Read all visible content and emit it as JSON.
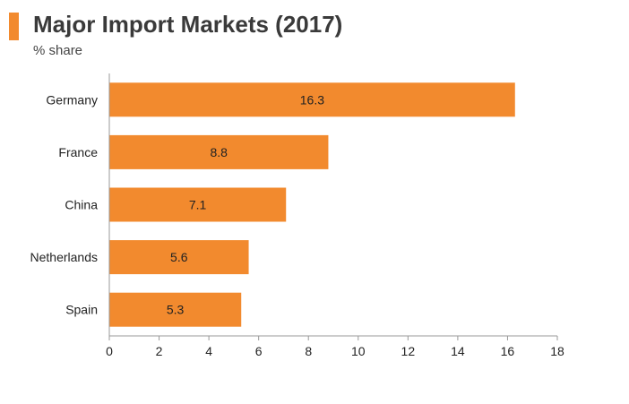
{
  "header": {
    "title": "Major Import Markets (2017)",
    "subtitle": "% share"
  },
  "colors": {
    "accent": "#f28a2e",
    "bar": "#f28a2e",
    "axis": "#999999",
    "text": "#222222"
  },
  "chart_data": {
    "type": "bar",
    "orientation": "horizontal",
    "title": "Major Import Markets (2017)",
    "subtitle": "% share",
    "categories": [
      "Germany",
      "France",
      "China",
      "Netherlands",
      "Spain"
    ],
    "values": [
      16.3,
      8.8,
      7.1,
      5.6,
      5.3
    ],
    "value_labels": [
      "16.3",
      "8.8",
      "7.1",
      "5.6",
      "5.3"
    ],
    "xlim": [
      0,
      18
    ],
    "xticks": [
      0,
      2,
      4,
      6,
      8,
      10,
      12,
      14,
      16,
      18
    ],
    "xlabel": "",
    "ylabel": "",
    "grid": false,
    "legend": "none"
  }
}
